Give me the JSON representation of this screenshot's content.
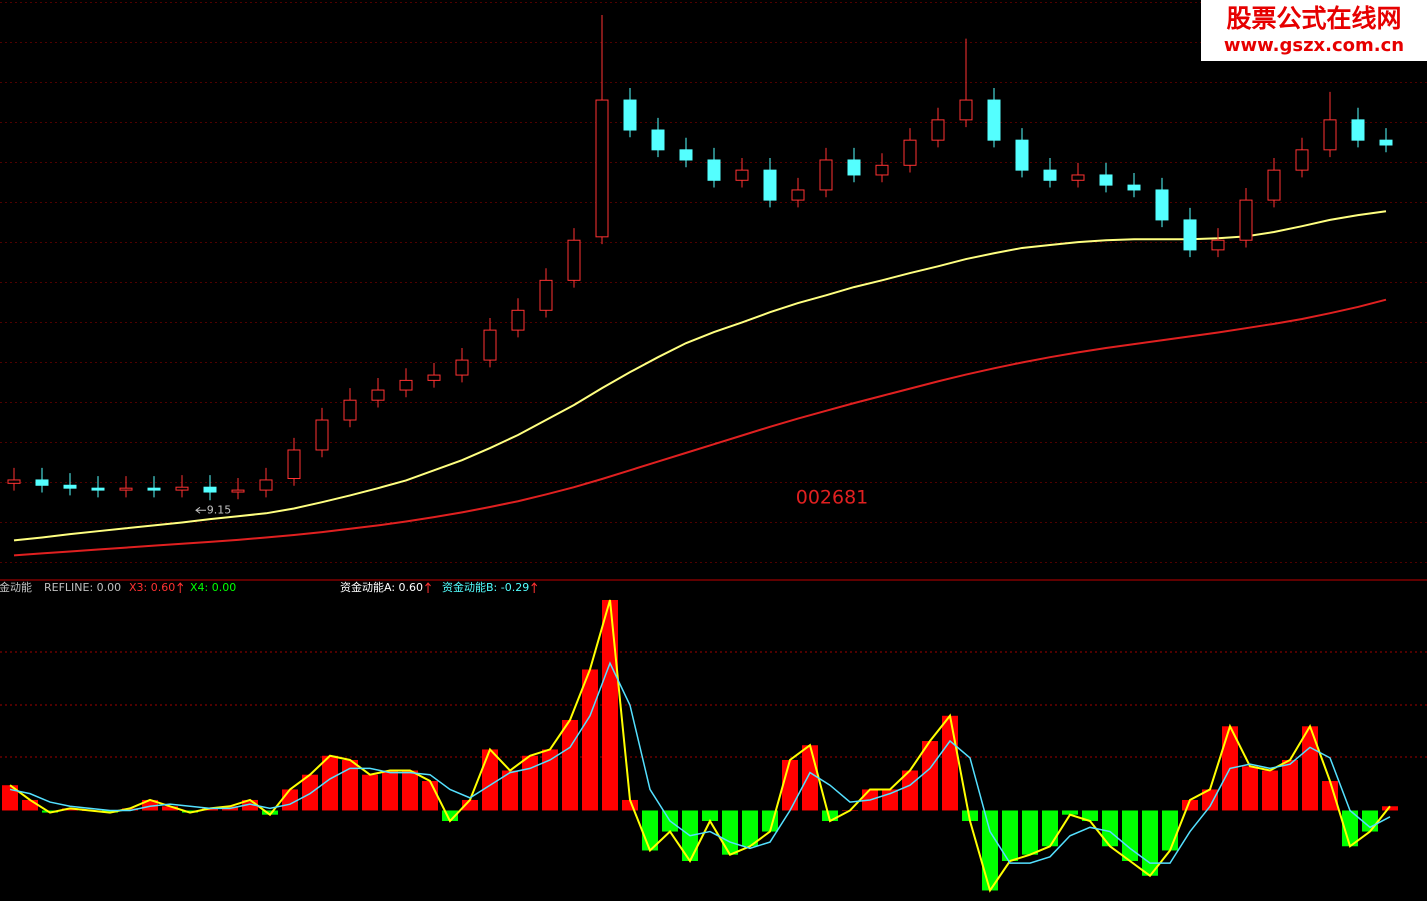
{
  "watermark": {
    "title": "股票公式在线网",
    "url": "www.gszx.com.cn"
  },
  "chart_data": [
    {
      "type": "candlestick",
      "title": "002681",
      "ylim": [
        7.5,
        19.5
      ],
      "open": [
        9.5,
        9.57,
        9.46,
        9.4,
        9.36,
        9.4,
        9.36,
        9.42,
        9.32,
        9.36,
        9.6,
        10.19,
        10.81,
        11.22,
        11.43,
        11.63,
        11.74,
        12.05,
        12.67,
        13.08,
        13.7,
        14.6,
        17.43,
        16.81,
        16.4,
        16.19,
        15.77,
        15.98,
        15.36,
        15.57,
        16.19,
        15.88,
        16.08,
        16.6,
        17.02,
        17.43,
        16.6,
        15.98,
        15.77,
        15.88,
        15.67,
        15.57,
        14.95,
        14.33,
        14.53,
        15.36,
        15.98,
        16.4,
        17.02,
        16.6
      ],
      "high": [
        9.82,
        9.82,
        9.71,
        9.65,
        9.65,
        9.65,
        9.67,
        9.67,
        9.61,
        9.82,
        10.44,
        11.06,
        11.47,
        11.68,
        11.88,
        11.99,
        12.3,
        12.92,
        13.33,
        13.95,
        14.78,
        19.19,
        17.68,
        17.06,
        16.65,
        16.44,
        16.23,
        16.23,
        15.82,
        16.44,
        16.44,
        16.33,
        16.85,
        17.27,
        18.7,
        17.68,
        16.85,
        16.23,
        16.13,
        16.13,
        15.92,
        15.82,
        15.2,
        14.78,
        15.61,
        16.23,
        16.65,
        17.6,
        17.27,
        16.85
      ],
      "low": [
        9.35,
        9.31,
        9.25,
        9.21,
        9.21,
        9.21,
        9.21,
        9.15,
        9.17,
        9.21,
        9.45,
        10.04,
        10.66,
        11.07,
        11.28,
        11.48,
        11.59,
        11.9,
        12.52,
        12.93,
        13.55,
        14.45,
        16.66,
        16.25,
        16.04,
        15.62,
        15.62,
        15.21,
        15.21,
        15.42,
        15.73,
        15.73,
        15.93,
        16.45,
        16.87,
        16.45,
        15.83,
        15.62,
        15.62,
        15.52,
        15.42,
        14.8,
        14.18,
        14.18,
        14.38,
        15.21,
        15.83,
        16.25,
        16.45,
        16.35
      ],
      "close": [
        9.57,
        9.46,
        9.4,
        9.36,
        9.4,
        9.36,
        9.42,
        9.32,
        9.36,
        9.57,
        10.19,
        10.81,
        11.22,
        11.43,
        11.63,
        11.74,
        12.05,
        12.67,
        13.08,
        13.7,
        14.53,
        17.43,
        16.81,
        16.4,
        16.19,
        15.77,
        15.98,
        15.36,
        15.57,
        16.19,
        15.88,
        16.08,
        16.6,
        17.02,
        17.43,
        16.6,
        15.98,
        15.77,
        15.88,
        15.67,
        15.57,
        14.95,
        14.33,
        14.53,
        15.36,
        15.98,
        16.4,
        17.02,
        16.6,
        16.5
      ],
      "up_color": "#ff3232",
      "down_color": "#54ffff",
      "low_marker_index": 7,
      "lines": [
        {
          "color": "#ffff80",
          "values": [
            8.32,
            8.38,
            8.45,
            8.51,
            8.57,
            8.63,
            8.69,
            8.76,
            8.82,
            8.88,
            8.98,
            9.11,
            9.25,
            9.4,
            9.56,
            9.77,
            9.98,
            10.23,
            10.5,
            10.81,
            11.12,
            11.47,
            11.8,
            12.11,
            12.4,
            12.63,
            12.83,
            13.04,
            13.23,
            13.39,
            13.56,
            13.7,
            13.85,
            13.99,
            14.14,
            14.26,
            14.37,
            14.43,
            14.49,
            14.53,
            14.55,
            14.55,
            14.55,
            14.57,
            14.61,
            14.7,
            14.82,
            14.95,
            15.05,
            15.13
          ]
        },
        {
          "color": "#e02020",
          "values": [
            8.01,
            8.05,
            8.09,
            8.13,
            8.17,
            8.21,
            8.25,
            8.29,
            8.33,
            8.38,
            8.43,
            8.49,
            8.56,
            8.63,
            8.71,
            8.8,
            8.9,
            9.01,
            9.13,
            9.27,
            9.42,
            9.59,
            9.77,
            9.95,
            10.13,
            10.31,
            10.49,
            10.67,
            10.84,
            11.0,
            11.16,
            11.31,
            11.46,
            11.61,
            11.75,
            11.88,
            12.0,
            12.11,
            12.21,
            12.3,
            12.38,
            12.46,
            12.54,
            12.62,
            12.71,
            12.8,
            12.9,
            13.02,
            13.15,
            13.3
          ]
        }
      ]
    },
    {
      "type": "histogram-line",
      "title": "资金动能",
      "ylim": [
        -0.43,
        1.0
      ],
      "legend": [
        "REFLINE: 0.00",
        "X3: 0.60",
        "X4: 0.00",
        "资金动能A: 0.60",
        "资金动能B: -0.29"
      ],
      "legend_colors": [
        "#c0c0c0",
        "#ff3232",
        "#00ff00",
        "#ffffff",
        "#54ffff"
      ],
      "pos_color": "#ff0000",
      "neg_color": "#00ff00",
      "outline_color": "#ffff00",
      "line_color": "#54e0ff",
      "values": [
        0.12,
        0.05,
        -0.01,
        0.01,
        0,
        -0.01,
        0.01,
        0.05,
        0.02,
        -0.01,
        0.01,
        0.02,
        0.05,
        -0.02,
        0.1,
        0.17,
        0.26,
        0.24,
        0.17,
        0.19,
        0.19,
        0.14,
        -0.05,
        0.05,
        0.29,
        0.19,
        0.26,
        0.29,
        0.43,
        0.67,
        1.0,
        0.05,
        -0.19,
        -0.1,
        -0.24,
        -0.05,
        -0.21,
        -0.17,
        -0.1,
        0.24,
        0.31,
        -0.05,
        0,
        0.1,
        0.1,
        0.19,
        0.33,
        0.45,
        -0.05,
        -0.38,
        -0.24,
        -0.21,
        -0.17,
        -0.02,
        -0.05,
        -0.17,
        -0.24,
        -0.31,
        -0.19,
        0.05,
        0.1,
        0.4,
        0.21,
        0.19,
        0.24,
        0.4,
        0.14,
        -0.17,
        -0.1,
        0.02
      ],
      "line": [
        0.1,
        0.08,
        0.04,
        0.02,
        0.01,
        0.0,
        0.0,
        0.02,
        0.03,
        0.02,
        0.01,
        0.01,
        0.03,
        0.01,
        0.03,
        0.08,
        0.15,
        0.2,
        0.2,
        0.18,
        0.18,
        0.17,
        0.1,
        0.06,
        0.12,
        0.18,
        0.2,
        0.24,
        0.3,
        0.45,
        0.7,
        0.5,
        0.1,
        -0.05,
        -0.12,
        -0.1,
        -0.15,
        -0.18,
        -0.15,
        0.0,
        0.18,
        0.12,
        0.04,
        0.05,
        0.08,
        0.12,
        0.2,
        0.33,
        0.25,
        -0.1,
        -0.25,
        -0.25,
        -0.22,
        -0.12,
        -0.08,
        -0.1,
        -0.18,
        -0.25,
        -0.25,
        -0.1,
        0.02,
        0.2,
        0.22,
        0.2,
        0.22,
        0.3,
        0.25,
        0.0,
        -0.08,
        -0.03
      ]
    }
  ]
}
